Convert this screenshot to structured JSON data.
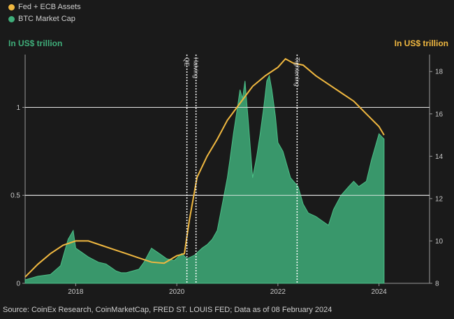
{
  "legend": {
    "items": [
      {
        "label": "Fed + ECB Assets",
        "color": "#f0b840"
      },
      {
        "label": "BTC Market Cap",
        "color": "#3fae7a"
      }
    ]
  },
  "left_axis_unit": "In US$ trillion",
  "right_axis_unit": "In US$ trillion",
  "source": "Source: CoinEx Research, CoinMarketCap, FRED ST. LOUIS FED; Data as of 08 February 2024",
  "chart_data": {
    "type": "area",
    "x_range": [
      2017.0,
      2025.0
    ],
    "x_ticks": [
      2018,
      2020,
      2022,
      2024
    ],
    "y_left": {
      "label": "In US$ trillion",
      "range": [
        0,
        1.3
      ],
      "ticks": [
        0,
        0.5,
        1
      ],
      "tick_labels": [
        "0",
        "0.5",
        "1"
      ]
    },
    "y_right": {
      "label": "In US$ trillion",
      "range": [
        8,
        18.8
      ],
      "ticks": [
        8,
        10,
        12,
        14,
        16,
        18
      ]
    },
    "grid": {
      "horizontal_at_left": [
        0.5,
        1.0
      ]
    },
    "annotations": [
      {
        "label": "QE",
        "x": 2020.2
      },
      {
        "label": "Halving",
        "x": 2020.38
      },
      {
        "label": "Tightening",
        "x": 2022.38
      }
    ],
    "series": [
      {
        "name": "BTC Market Cap",
        "axis": "left",
        "color": "#3fae7a",
        "style": "area",
        "x": [
          2017.0,
          2017.25,
          2017.5,
          2017.7,
          2017.85,
          2017.95,
          2018.0,
          2018.1,
          2018.25,
          2018.45,
          2018.6,
          2018.8,
          2018.9,
          2019.0,
          2019.25,
          2019.35,
          2019.5,
          2019.65,
          2019.8,
          2019.95,
          2020.1,
          2020.2,
          2020.35,
          2020.5,
          2020.6,
          2020.7,
          2020.8,
          2020.9,
          2021.0,
          2021.05,
          2021.12,
          2021.2,
          2021.25,
          2021.3,
          2021.35,
          2021.42,
          2021.5,
          2021.58,
          2021.65,
          2021.72,
          2021.78,
          2021.83,
          2021.88,
          2021.95,
          2022.0,
          2022.1,
          2022.25,
          2022.4,
          2022.5,
          2022.6,
          2022.75,
          2022.9,
          2023.0,
          2023.1,
          2023.25,
          2023.4,
          2023.5,
          2023.6,
          2023.75,
          2023.85,
          2023.95,
          2024.0,
          2024.1
        ],
        "values": [
          0.02,
          0.04,
          0.05,
          0.1,
          0.25,
          0.3,
          0.2,
          0.18,
          0.15,
          0.12,
          0.11,
          0.07,
          0.06,
          0.06,
          0.08,
          0.12,
          0.2,
          0.17,
          0.14,
          0.13,
          0.17,
          0.14,
          0.16,
          0.2,
          0.22,
          0.25,
          0.3,
          0.45,
          0.6,
          0.7,
          0.85,
          1.0,
          1.1,
          1.05,
          1.15,
          0.9,
          0.6,
          0.72,
          0.85,
          1.0,
          1.15,
          1.18,
          1.1,
          0.95,
          0.8,
          0.75,
          0.6,
          0.55,
          0.45,
          0.4,
          0.38,
          0.35,
          0.33,
          0.42,
          0.5,
          0.55,
          0.58,
          0.55,
          0.58,
          0.7,
          0.8,
          0.85,
          0.82
        ]
      },
      {
        "name": "Fed + ECB Assets",
        "axis": "right",
        "color": "#f0b840",
        "style": "line",
        "x": [
          2017.0,
          2017.25,
          2017.5,
          2017.75,
          2018.0,
          2018.25,
          2018.5,
          2018.75,
          2019.0,
          2019.25,
          2019.5,
          2019.75,
          2020.0,
          2020.15,
          2020.25,
          2020.4,
          2020.6,
          2020.8,
          2021.0,
          2021.25,
          2021.5,
          2021.75,
          2022.0,
          2022.15,
          2022.3,
          2022.5,
          2022.75,
          2023.0,
          2023.25,
          2023.5,
          2023.75,
          2024.0,
          2024.1
        ],
        "values": [
          8.3,
          8.9,
          9.4,
          9.8,
          10.0,
          10.0,
          9.8,
          9.6,
          9.4,
          9.2,
          9.0,
          8.95,
          9.3,
          9.4,
          11.0,
          13.0,
          14.0,
          14.8,
          15.7,
          16.5,
          17.3,
          17.8,
          18.2,
          18.6,
          18.4,
          18.3,
          17.8,
          17.4,
          17.0,
          16.6,
          16.0,
          15.4,
          15.0
        ]
      }
    ]
  }
}
